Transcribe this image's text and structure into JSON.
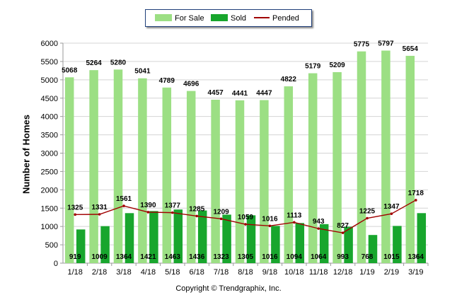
{
  "chart_data": {
    "type": "bar",
    "categories": [
      "1/18",
      "2/18",
      "3/18",
      "4/18",
      "5/18",
      "6/18",
      "7/18",
      "8/18",
      "9/18",
      "10/18",
      "11/18",
      "12/18",
      "1/19",
      "2/19",
      "3/19"
    ],
    "series": [
      {
        "name": "For Sale",
        "kind": "bar",
        "color": "#9cdf84",
        "values": [
          5068,
          5264,
          5280,
          5041,
          4789,
          4696,
          4457,
          4441,
          4447,
          4822,
          5179,
          5209,
          5775,
          5797,
          5654
        ]
      },
      {
        "name": "Sold",
        "kind": "bar",
        "color": "#18a62d",
        "values": [
          919,
          1009,
          1364,
          1421,
          1463,
          1436,
          1323,
          1305,
          1016,
          1094,
          1064,
          993,
          768,
          1015,
          1364
        ]
      },
      {
        "name": "Pended",
        "kind": "line",
        "color": "#a00000",
        "values": [
          1325,
          1331,
          1561,
          1390,
          1377,
          1285,
          1209,
          1059,
          1016,
          1113,
          943,
          827,
          1225,
          1347,
          1718
        ]
      }
    ],
    "ylabel": "Number of Homes",
    "ylim": [
      0,
      6000
    ],
    "yticks": [
      0,
      500,
      1000,
      1500,
      2000,
      2500,
      3000,
      3500,
      4000,
      4500,
      5000,
      5500,
      6000
    ],
    "grid": true,
    "legend_position": "top-center",
    "copyright": "Copyright © Trendgraphix, Inc."
  }
}
